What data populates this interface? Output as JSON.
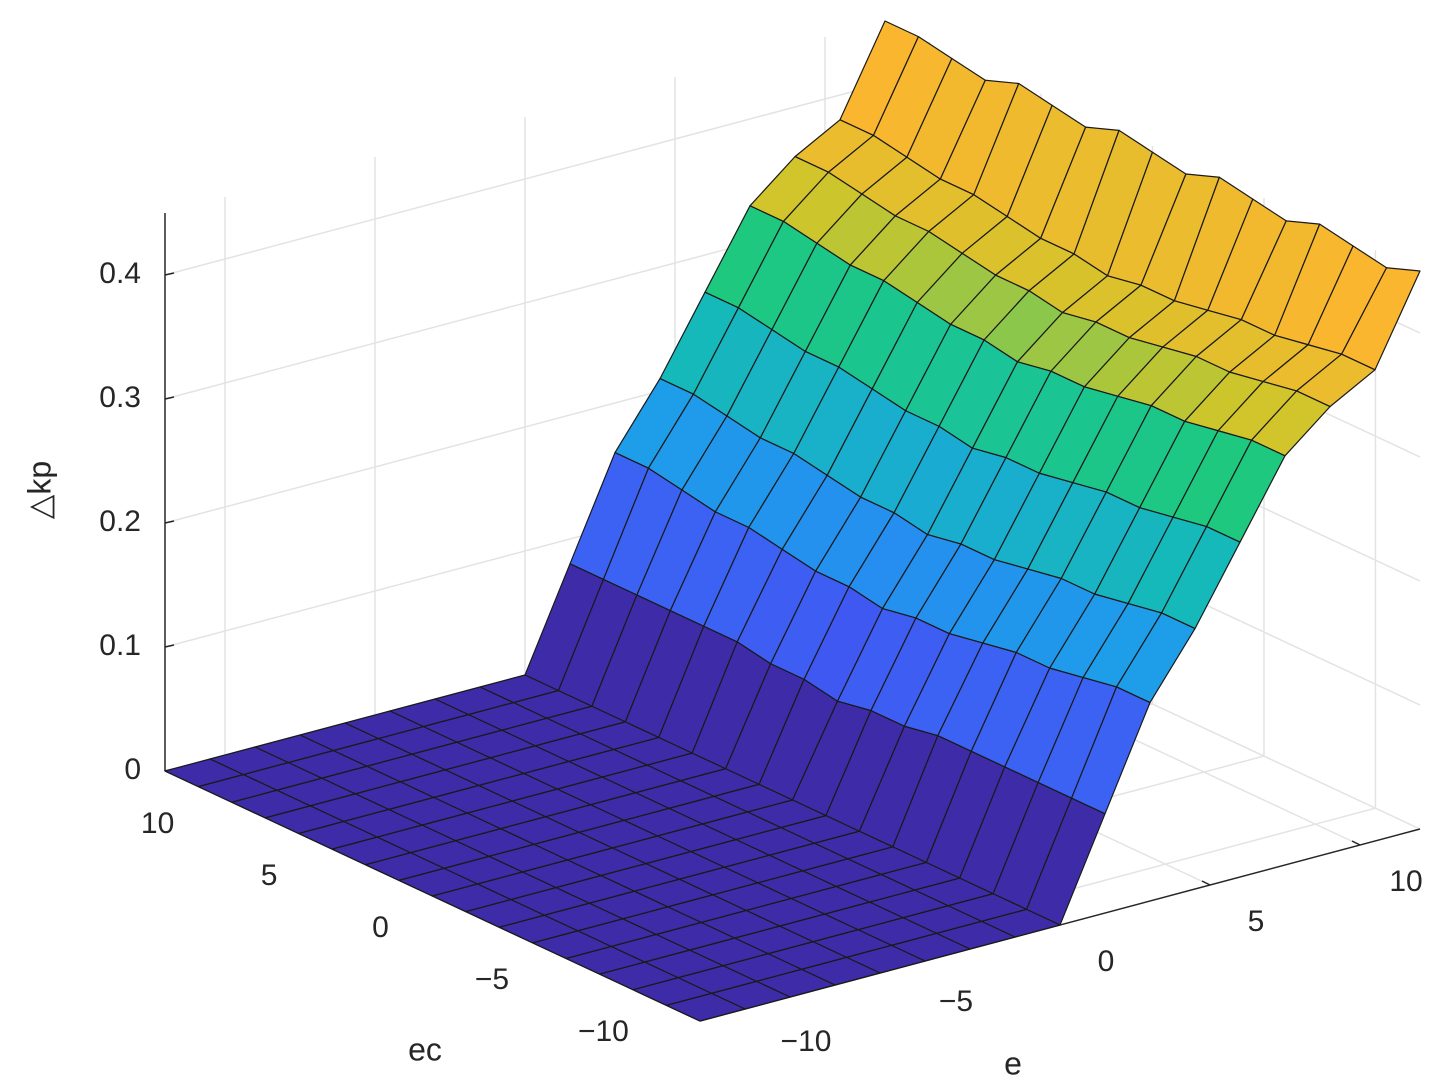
{
  "chart_data": {
    "type": "surface",
    "xlabel": "e",
    "ylabel": "ec",
    "zlabel": "△kp",
    "xlim": [
      -12,
      12
    ],
    "ylim": [
      -12,
      12
    ],
    "zlim": [
      0,
      0.45
    ],
    "clim": [
      0,
      0.38
    ],
    "xticks": [
      {
        "value": -10,
        "label": "−10"
      },
      {
        "value": -5,
        "label": "−5"
      },
      0,
      5,
      10
    ],
    "yticks": [
      {
        "value": -10,
        "label": "−10"
      },
      {
        "value": -5,
        "label": "−5"
      },
      0,
      5,
      10
    ],
    "zticks": [
      0,
      0.1,
      0.2,
      0.3,
      0.4
    ],
    "grid": true,
    "colormap": [
      "#3e2ba8",
      "#4749ef",
      "#2f7ef8",
      "#1d9fe8",
      "#15bdb3",
      "#1ec97e",
      "#cfc52b",
      "#fbb62f"
    ],
    "edge_color": "#1a1a1a",
    "x": [
      -12,
      -10.5,
      -9,
      -7.5,
      -6,
      -4.5,
      -3,
      -1.5,
      0,
      1.5,
      3,
      4.5,
      6,
      7.5,
      9,
      10.5,
      12
    ],
    "y": [
      -12,
      -10.5,
      -9,
      -7.5,
      -6,
      -4.5,
      -3,
      -1.5,
      0,
      1.5,
      3,
      4.5,
      6,
      7.5,
      9,
      10.5,
      12
    ],
    "z": [
      [
        0,
        0,
        0,
        0,
        0,
        0,
        0,
        0,
        0,
        0.08,
        0.16,
        0.21,
        0.27,
        0.33,
        0.36,
        0.38,
        0.45
      ],
      [
        0,
        0,
        0,
        0,
        0,
        0,
        0,
        0,
        0,
        0.08,
        0.16,
        0.21,
        0.27,
        0.33,
        0.36,
        0.38,
        0.44
      ],
      [
        0,
        0,
        0,
        0,
        0,
        0,
        0,
        0,
        0,
        0.08,
        0.155,
        0.205,
        0.265,
        0.325,
        0.355,
        0.375,
        0.445
      ],
      [
        0,
        0,
        0,
        0,
        0,
        0,
        0,
        0,
        0,
        0.08,
        0.15,
        0.2,
        0.26,
        0.32,
        0.35,
        0.37,
        0.45
      ],
      [
        0,
        0,
        0,
        0,
        0,
        0,
        0,
        0,
        0,
        0.08,
        0.15,
        0.2,
        0.26,
        0.32,
        0.35,
        0.37,
        0.44
      ],
      [
        0,
        0,
        0,
        0,
        0,
        0,
        0,
        0,
        0,
        0.08,
        0.145,
        0.195,
        0.255,
        0.315,
        0.345,
        0.365,
        0.445
      ],
      [
        0,
        0,
        0,
        0,
        0,
        0,
        0,
        0,
        0,
        0.075,
        0.14,
        0.19,
        0.25,
        0.31,
        0.34,
        0.36,
        0.45
      ],
      [
        0,
        0,
        0,
        0,
        0,
        0,
        0,
        0,
        0,
        0.075,
        0.14,
        0.19,
        0.25,
        0.31,
        0.34,
        0.36,
        0.44
      ],
      [
        0,
        0,
        0,
        0,
        0,
        0,
        0,
        0,
        0,
        0.07,
        0.135,
        0.185,
        0.245,
        0.305,
        0.335,
        0.355,
        0.445
      ],
      [
        0,
        0,
        0,
        0,
        0,
        0,
        0,
        0,
        0,
        0.075,
        0.14,
        0.19,
        0.25,
        0.31,
        0.34,
        0.36,
        0.45
      ],
      [
        0,
        0,
        0,
        0,
        0,
        0,
        0,
        0,
        0,
        0.075,
        0.14,
        0.19,
        0.25,
        0.31,
        0.34,
        0.36,
        0.44
      ],
      [
        0,
        0,
        0,
        0,
        0,
        0,
        0,
        0,
        0,
        0.08,
        0.145,
        0.195,
        0.255,
        0.315,
        0.345,
        0.365,
        0.445
      ],
      [
        0,
        0,
        0,
        0,
        0,
        0,
        0,
        0,
        0,
        0.08,
        0.15,
        0.2,
        0.26,
        0.32,
        0.35,
        0.37,
        0.45
      ],
      [
        0,
        0,
        0,
        0,
        0,
        0,
        0,
        0,
        0,
        0.08,
        0.15,
        0.2,
        0.26,
        0.32,
        0.35,
        0.37,
        0.44
      ],
      [
        0,
        0,
        0,
        0,
        0,
        0,
        0,
        0,
        0,
        0.08,
        0.155,
        0.205,
        0.265,
        0.325,
        0.355,
        0.375,
        0.445
      ],
      [
        0,
        0,
        0,
        0,
        0,
        0,
        0,
        0,
        0,
        0.08,
        0.16,
        0.21,
        0.27,
        0.33,
        0.36,
        0.38,
        0.45
      ],
      [
        0,
        0,
        0,
        0,
        0,
        0,
        0,
        0,
        0,
        0.08,
        0.16,
        0.21,
        0.27,
        0.33,
        0.36,
        0.38,
        0.45
      ]
    ]
  }
}
